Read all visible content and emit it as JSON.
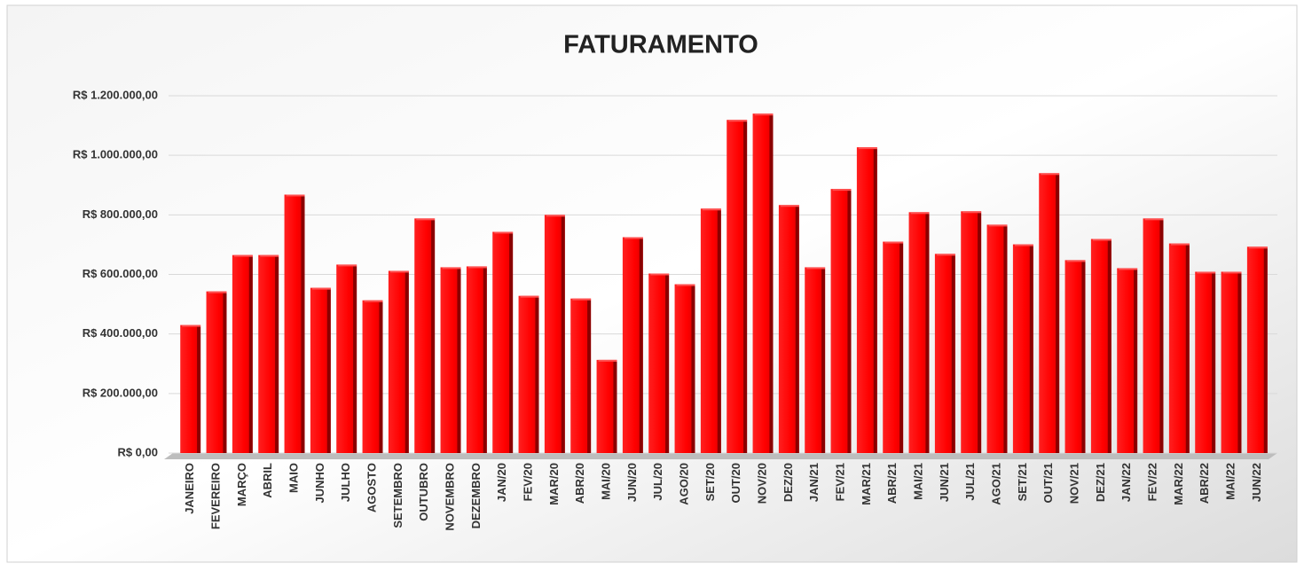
{
  "chart_data": {
    "type": "bar",
    "title": "FATURAMENTO",
    "categories": [
      "JANEIRO",
      "FEVEREIRO",
      "MARÇO",
      "ABRIL",
      "MAIO",
      "JUNHO",
      "JULHO",
      "AGOSTO",
      "SETEMBRO",
      "OUTUBRO",
      "NOVEMBRO",
      "DEZEMBRO",
      "JAN/20",
      "FEV/20",
      "MAR/20",
      "ABR/20",
      "MAI/20",
      "JUN/20",
      "JUL/20",
      "AGO/20",
      "SET/20",
      "OUT/20",
      "NOV/20",
      "DEZ/20",
      "JAN/21",
      "FEV/21",
      "MAR/21",
      "ABR/21",
      "MAI/21",
      "JUN/21",
      "JUL/21",
      "AGO/21",
      "SET/21",
      "OUT/21",
      "NOV/21",
      "DEZ/21",
      "JAN/22",
      "FEV/22",
      "MAR/22",
      "ABR/22",
      "MAI/22",
      "JUN/22"
    ],
    "values": [
      430000,
      543000,
      665000,
      665000,
      868000,
      555000,
      633000,
      513000,
      612000,
      788000,
      624000,
      627000,
      743000,
      528000,
      800000,
      519000,
      313000,
      725000,
      603000,
      567000,
      821000,
      1119000,
      1140000,
      833000,
      624000,
      887000,
      1027000,
      710000,
      809000,
      669000,
      812000,
      767000,
      701000,
      940000,
      648000,
      719000,
      621000,
      788000,
      704000,
      609000,
      609000,
      693000
    ],
    "color": "#ff0000",
    "ylim": [
      0,
      1200000
    ],
    "yticks": [
      {
        "value": 0,
        "label": "R$ 0,00"
      },
      {
        "value": 200000,
        "label": "R$ 200.000,00"
      },
      {
        "value": 400000,
        "label": "R$ 400.000,00"
      },
      {
        "value": 600000,
        "label": "R$ 600.000,00"
      },
      {
        "value": 800000,
        "label": "R$ 800.000,00"
      },
      {
        "value": 1000000,
        "label": "R$ 1.000.000,00"
      },
      {
        "value": 1200000,
        "label": "R$ 1.200.000,00"
      }
    ],
    "grid": true
  }
}
